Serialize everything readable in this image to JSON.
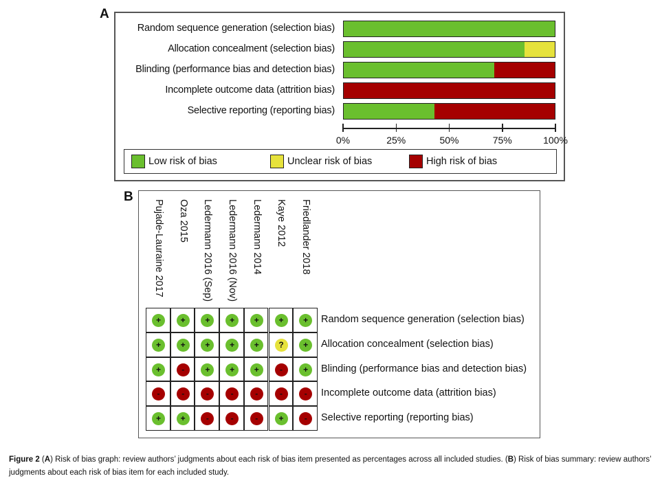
{
  "panel_a_label": "A",
  "panel_b_label": "B",
  "colors": {
    "low": "#6abf2e",
    "unclear": "#e6e23c",
    "high": "#a50000"
  },
  "chart_data": {
    "type": "bar",
    "stacked": true,
    "orientation": "horizontal",
    "categories": [
      "Random sequence generation (selection bias)",
      "Allocation concealment (selection bias)",
      "Blinding (performance bias and detection bias)",
      "Incomplete outcome data (attrition bias)",
      "Selective reporting (reporting bias)"
    ],
    "series": [
      {
        "name": "Low risk of bias",
        "values": [
          100,
          85.7,
          71.4,
          0,
          42.9
        ]
      },
      {
        "name": "Unclear risk of bias",
        "values": [
          0,
          14.3,
          0,
          0,
          0
        ]
      },
      {
        "name": "High risk of bias",
        "values": [
          0,
          0,
          28.6,
          100,
          57.1
        ]
      }
    ],
    "xlim": [
      0,
      100
    ],
    "xticks": [
      "0%",
      "25%",
      "50%",
      "75%",
      "100%"
    ],
    "legend": "bottom",
    "grid": false
  },
  "summary": {
    "studies": [
      "Pujade-Lauraine 2017",
      "Oza 2015",
      "Ledermann 2016 (Sep)",
      "Ledermann 2016 (Nov)",
      "Ledermann 2014",
      "Kaye 2012",
      "Friedlander 2018"
    ],
    "items": [
      "Random sequence generation (selection bias)",
      "Allocation concealment (selection bias)",
      "Blinding (performance bias and detection bias)",
      "Incomplete outcome data (attrition bias)",
      "Selective reporting (reporting bias)"
    ],
    "judgments": [
      [
        "+",
        "+",
        "+",
        "+",
        "+",
        "+",
        "+"
      ],
      [
        "+",
        "+",
        "+",
        "+",
        "+",
        "?",
        "+"
      ],
      [
        "+",
        "-",
        "+",
        "+",
        "+",
        "-",
        "+"
      ],
      [
        "-",
        "-",
        "-",
        "-",
        "-",
        "-",
        "-"
      ],
      [
        "+",
        "+",
        "-",
        "-",
        "-",
        "+",
        "-"
      ]
    ]
  },
  "caption": {
    "fig": "Figure 2",
    "a": "A",
    "text_a": ") Risk of bias graph: review authors’ judgments about each risk of bias item presented as percentages across all included studies. (",
    "b": "B",
    "text_b": ") Risk of bias summary: review authors’ judgments about each risk of bias item for each included study."
  }
}
